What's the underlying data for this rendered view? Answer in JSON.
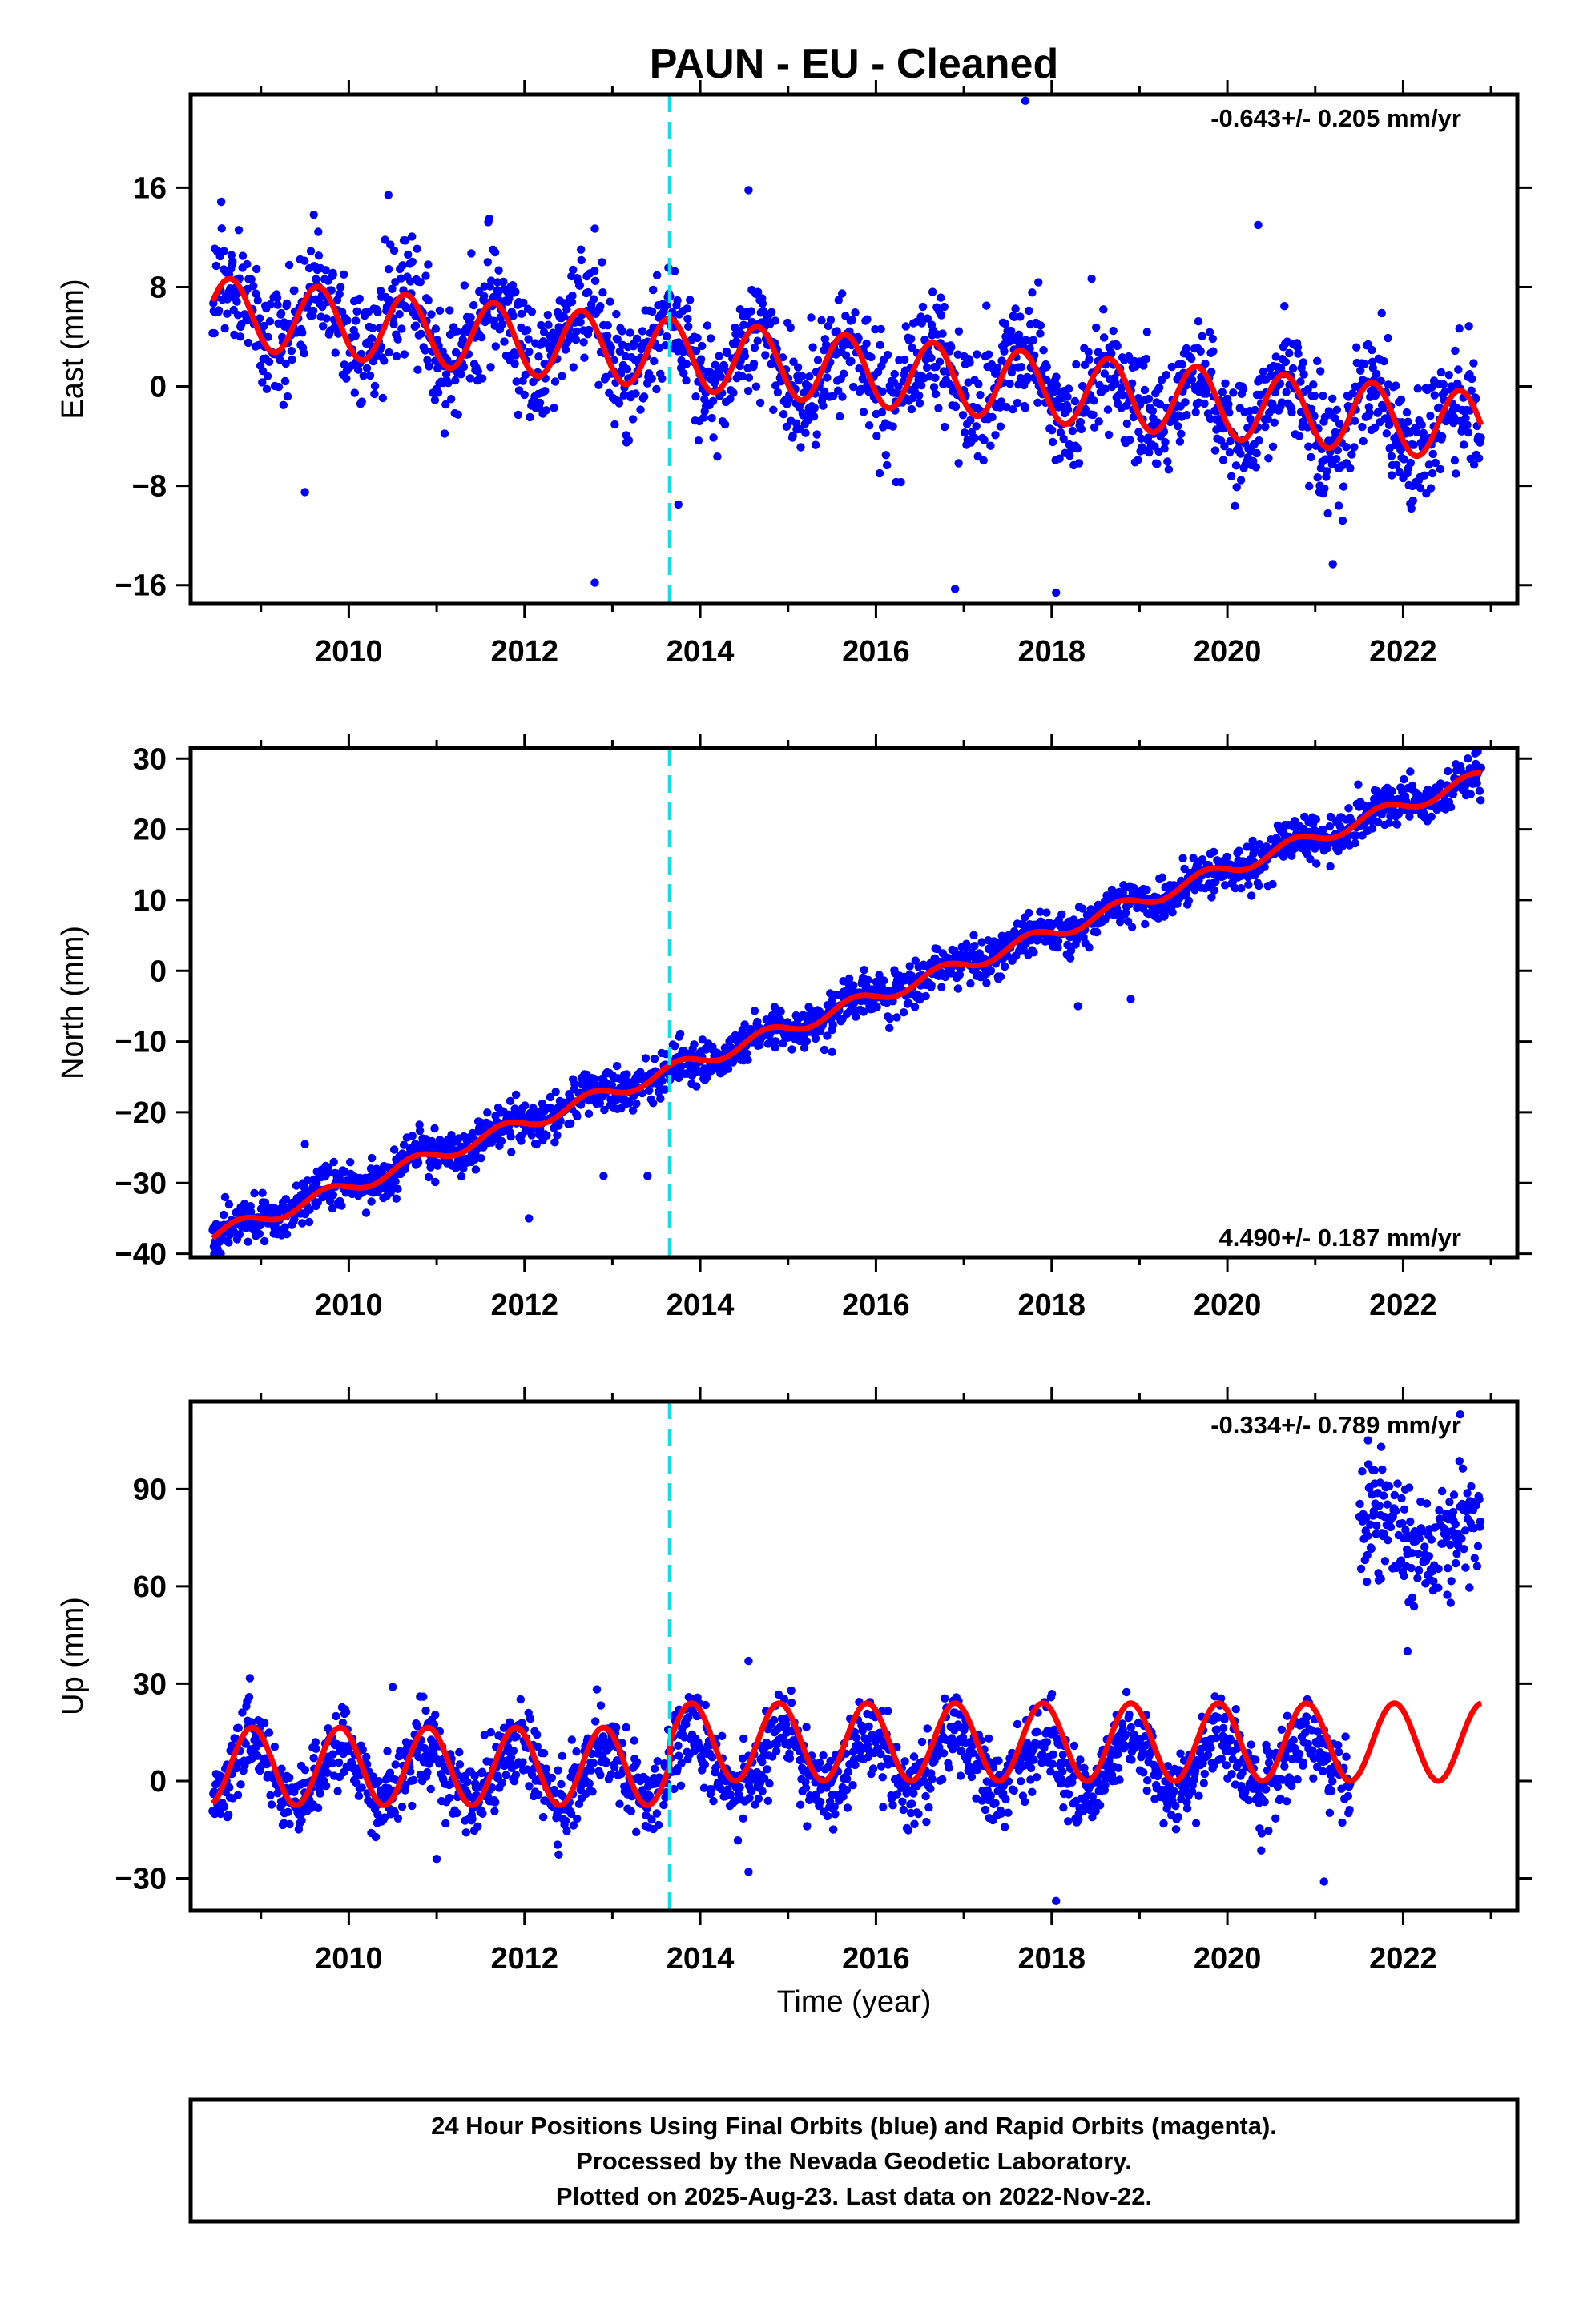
{
  "title": "PAUN  - EU - Cleaned",
  "xlabel": "Time (year)",
  "footer": [
    "24 Hour Positions Using Final Orbits (blue) and Rapid Orbits (magenta).",
    "Processed by the Nevada Geodetic Laboratory.",
    "Plotted on 2025-Aug-23. Last data on 2022-Nov-22."
  ],
  "colors": {
    "points": "#0000ff",
    "model": "#ff0000",
    "event": "#00e5ee",
    "frame": "#000000"
  },
  "chart_data": [
    {
      "type": "scatter",
      "component": "east",
      "ylabel": "East (mm)",
      "rate_label": "-0.643+/- 0.205 mm/yr",
      "rate_position": "top-right",
      "xlim": [
        2008.2,
        2023.3
      ],
      "ylim": [
        -17.5,
        23.5
      ],
      "xticks": [
        2010,
        2012,
        2014,
        2016,
        2018,
        2020,
        2022
      ],
      "yticks": [
        -16,
        -8,
        0,
        8,
        16
      ],
      "yticklabels": [
        "−16",
        "−8",
        "0",
        "8",
        "16"
      ],
      "event_year": 2013.65,
      "data_range": [
        2008.45,
        2022.89
      ],
      "series": [
        {
          "kind": "points",
          "trend_mm_yr": -0.643,
          "offset_mm": 6.0,
          "annual_amplitude_mm": 2.6,
          "annual_phase_year": 0.4,
          "scatter_mm": 2.3
        },
        {
          "kind": "model_line",
          "trend_mm_yr": -0.643,
          "offset_mm": 6.0,
          "annual_amplitude_mm": 2.8,
          "annual_phase_year": 0.4
        }
      ],
      "outliers": [
        [
          2017.7,
          23.0
        ],
        [
          2010.45,
          15.4
        ],
        [
          2011.6,
          13.5
        ],
        [
          2012.8,
          12.7
        ],
        [
          2014.55,
          15.8
        ],
        [
          2020.35,
          13.0
        ],
        [
          2012.8,
          -15.8
        ],
        [
          2016.9,
          -16.3
        ],
        [
          2018.05,
          -16.6
        ],
        [
          2021.2,
          -14.3
        ],
        [
          2009.5,
          -8.5
        ],
        [
          2013.75,
          -9.5
        ]
      ]
    },
    {
      "type": "scatter",
      "component": "north",
      "ylabel": "North (mm)",
      "rate_label": "4.490+/- 0.187 mm/yr",
      "rate_position": "bottom-right",
      "xlim": [
        2008.2,
        2023.3
      ],
      "ylim": [
        -40.5,
        31.5
      ],
      "xticks": [
        2010,
        2012,
        2014,
        2016,
        2018,
        2020,
        2022
      ],
      "yticks": [
        -40,
        -30,
        -20,
        -10,
        0,
        10,
        20,
        30
      ],
      "yticklabels": [
        "−40",
        "−30",
        "−20",
        "−10",
        "0",
        "10",
        "20",
        "30"
      ],
      "event_year": 2013.65,
      "data_range": [
        2008.45,
        2022.89
      ],
      "series": [
        {
          "kind": "points",
          "trend_mm_yr": 4.49,
          "start_mm": -37.5,
          "annual_amplitude_mm": 1.0,
          "annual_phase_year": 0.5,
          "scatter_mm": 1.5
        },
        {
          "kind": "model_line",
          "trend_mm_yr": 4.49,
          "start_mm": -37.5,
          "annual_amplitude_mm": 1.0,
          "annual_phase_year": 0.5
        }
      ],
      "outliers": [
        [
          2012.05,
          -35.0
        ],
        [
          2012.9,
          -29.0
        ],
        [
          2013.4,
          -29.0
        ],
        [
          2009.5,
          -24.5
        ],
        [
          2018.3,
          -5.0
        ],
        [
          2018.9,
          -4.0
        ],
        [
          2015.5,
          -11.5
        ],
        [
          2022.85,
          31.0
        ]
      ]
    },
    {
      "type": "scatter",
      "component": "up",
      "ylabel": "Up (mm)",
      "rate_label": "-0.334+/- 0.789 mm/yr",
      "rate_position": "top-right",
      "xlim": [
        2008.2,
        2023.3
      ],
      "ylim": [
        -40,
        117
      ],
      "xticks": [
        2010,
        2012,
        2014,
        2016,
        2018,
        2020,
        2022
      ],
      "yticks": [
        -30,
        0,
        30,
        60,
        90
      ],
      "yticklabels": [
        "−30",
        "0",
        "30",
        "60",
        "90"
      ],
      "event_year": 2013.65,
      "data_range": [
        2008.45,
        2022.89
      ],
      "gap": [
        2021.4,
        2021.5
      ],
      "series": [
        {
          "kind": "points",
          "before_event_mm": 3.0,
          "after_event_mm": 5.0,
          "annual_amplitude_mm": 9.0,
          "annual_phase_year": 0.65,
          "scatter_mm": 6.0,
          "late_cluster": {
            "from": 2021.5,
            "to": 2022.89,
            "level_mm": 75.0,
            "scatter_mm": 9.0
          }
        },
        {
          "kind": "model_line",
          "before_event_mm": 4.5,
          "after_event_mm": 12.0,
          "annual_amplitude_mm": 12.0,
          "annual_phase_year": 0.65
        }
      ],
      "outliers": [
        [
          2022.65,
          113.0
        ],
        [
          2021.6,
          105.0
        ],
        [
          2021.75,
          103.0
        ],
        [
          2022.05,
          40.0
        ],
        [
          2014.55,
          37.0
        ],
        [
          2018.05,
          -37.0
        ],
        [
          2021.1,
          -31.0
        ],
        [
          2014.55,
          -28.0
        ],
        [
          2010.5,
          29.0
        ],
        [
          2011.0,
          -24.0
        ]
      ]
    }
  ]
}
